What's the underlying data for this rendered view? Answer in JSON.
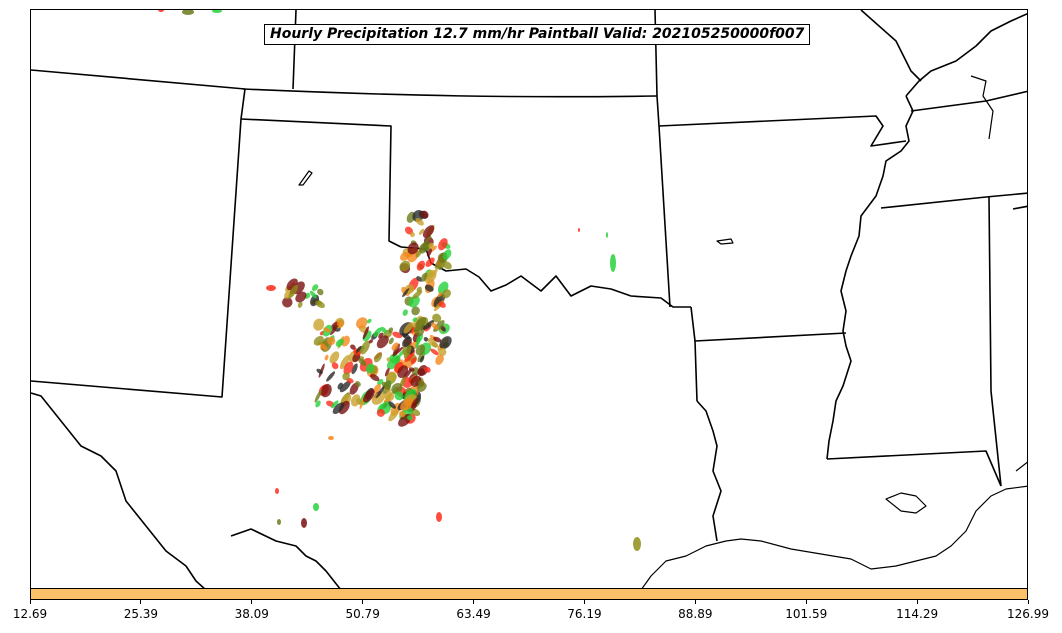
{
  "map": {
    "title": "Hourly Precipitation 12.7 mm/hr Paintball Valid: 202105250000f007",
    "colors": {
      "outline": "#000000",
      "colorbar_fill": "#fcc168",
      "paintball_palette": [
        "#ff2a1a",
        "#f5871c",
        "#6b7a1a",
        "#2b2b2b",
        "#26d13a",
        "#7a1010",
        "#c9a12c",
        "#8e8e1a"
      ]
    }
  },
  "colorbar": {
    "ticks": [
      "12.69",
      "25.39",
      "38.09",
      "50.79",
      "63.49",
      "76.19",
      "88.89",
      "101.59",
      "114.29",
      "126.99"
    ]
  }
}
